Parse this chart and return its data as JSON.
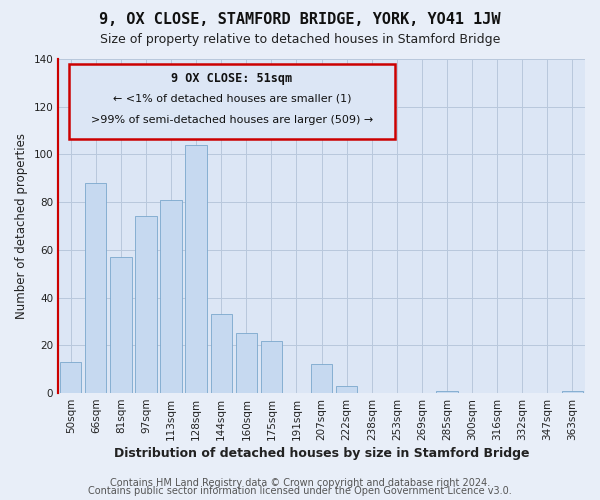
{
  "title": "9, OX CLOSE, STAMFORD BRIDGE, YORK, YO41 1JW",
  "subtitle": "Size of property relative to detached houses in Stamford Bridge",
  "xlabel": "Distribution of detached houses by size in Stamford Bridge",
  "ylabel": "Number of detached properties",
  "bar_labels": [
    "50sqm",
    "66sqm",
    "81sqm",
    "97sqm",
    "113sqm",
    "128sqm",
    "144sqm",
    "160sqm",
    "175sqm",
    "191sqm",
    "207sqm",
    "222sqm",
    "238sqm",
    "253sqm",
    "269sqm",
    "285sqm",
    "300sqm",
    "316sqm",
    "332sqm",
    "347sqm",
    "363sqm"
  ],
  "bar_values": [
    13,
    88,
    57,
    74,
    81,
    104,
    33,
    25,
    22,
    0,
    12,
    3,
    0,
    0,
    0,
    1,
    0,
    0,
    0,
    0,
    1
  ],
  "bar_color": "#c6d9f0",
  "bar_edge_color": "#7ba7cc",
  "ylim": [
    0,
    140
  ],
  "yticks": [
    0,
    20,
    40,
    60,
    80,
    100,
    120,
    140
  ],
  "annotation_title": "9 OX CLOSE: 51sqm",
  "annotation_line1": "← <1% of detached houses are smaller (1)",
  "annotation_line2": ">99% of semi-detached houses are larger (509) →",
  "footer1": "Contains HM Land Registry data © Crown copyright and database right 2024.",
  "footer2": "Contains public sector information licensed under the Open Government Licence v3.0.",
  "background_color": "#e8eef8",
  "plot_bg_color": "#dce6f5",
  "grid_color": "#b8c8dc",
  "title_fontsize": 11,
  "subtitle_fontsize": 9,
  "xlabel_fontsize": 9,
  "ylabel_fontsize": 8.5,
  "tick_fontsize": 7.5,
  "footer_fontsize": 7
}
